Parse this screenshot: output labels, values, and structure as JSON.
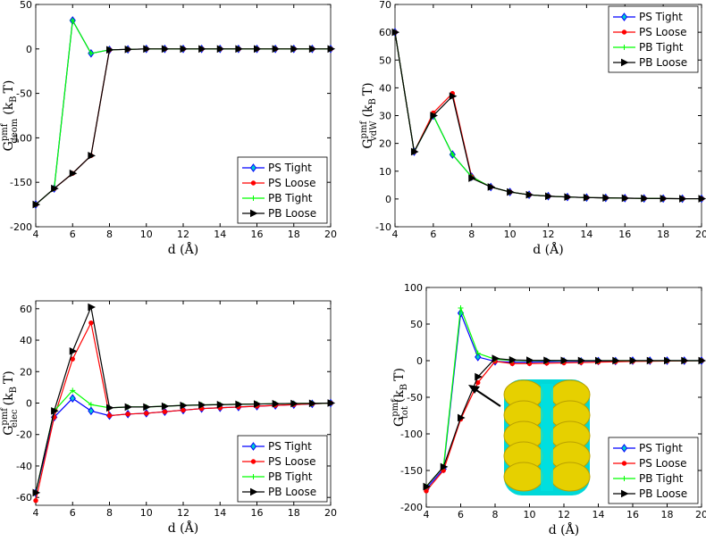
{
  "chart_data": [
    {
      "type": "line",
      "legend": "lower right",
      "xlabel": "d (Å)",
      "ylabel": {
        "main": "G",
        "sup": "pmf",
        "sub": "geom",
        "unit": "(k",
        "unit_sub": "B",
        "unit_end": "T)"
      },
      "x": [
        4,
        5,
        6,
        7,
        8,
        9,
        10,
        11,
        12,
        13,
        14,
        15,
        16,
        17,
        18,
        19,
        20
      ],
      "xlim": [
        4,
        20
      ],
      "xticks": [
        4,
        6,
        8,
        10,
        12,
        14,
        16,
        18,
        20
      ],
      "ylim": [
        -200,
        50
      ],
      "yticks": [
        -200,
        -150,
        -100,
        -50,
        0,
        50
      ],
      "series": [
        {
          "name": "PS Tight",
          "color": "#0000ff",
          "marker": "diamond",
          "values": [
            -175,
            -157,
            32,
            -5,
            -1,
            -0.5,
            0,
            0,
            0,
            0,
            0,
            0,
            0,
            0,
            0,
            0,
            0
          ]
        },
        {
          "name": "PS Loose",
          "color": "#ff0000",
          "marker": "dot",
          "values": [
            -175,
            -157,
            -140,
            -120,
            -1,
            -0.5,
            0,
            0,
            0,
            0,
            0,
            0,
            0,
            0,
            0,
            0,
            0
          ]
        },
        {
          "name": "PB Tight",
          "color": "#00ff00",
          "marker": "plus",
          "values": [
            -175,
            -157,
            32,
            -5,
            -1,
            -0.5,
            0,
            0,
            0,
            0,
            0,
            0,
            0,
            0,
            0,
            0,
            0
          ]
        },
        {
          "name": "PB Loose",
          "color": "#000000",
          "marker": "triangle",
          "values": [
            -175,
            -157,
            -140,
            -120,
            -1,
            -0.5,
            0,
            0,
            0,
            0,
            0,
            0,
            0,
            0,
            0,
            0,
            0
          ]
        }
      ]
    },
    {
      "type": "line",
      "legend": "upper right",
      "xlabel": "d (Å)",
      "ylabel": {
        "main": "G",
        "sup": "pmf",
        "sub": "vdW",
        "unit": "(k",
        "unit_sub": "B",
        "unit_end": "T)"
      },
      "x": [
        4,
        5,
        6,
        7,
        8,
        9,
        10,
        11,
        12,
        13,
        14,
        15,
        16,
        17,
        18,
        19,
        20
      ],
      "xlim": [
        4,
        20
      ],
      "xticks": [
        4,
        6,
        8,
        10,
        12,
        14,
        16,
        18,
        20
      ],
      "ylim": [
        -10,
        70
      ],
      "yticks": [
        -10,
        0,
        10,
        20,
        30,
        40,
        50,
        60,
        70
      ],
      "series": [
        {
          "name": "PS Tight",
          "color": "#0000ff",
          "marker": "diamond",
          "values": [
            60,
            17,
            30,
            16,
            8,
            4.3,
            2.5,
            1.5,
            1,
            0.7,
            0.5,
            0.4,
            0.3,
            0.2,
            0.15,
            0.1,
            0.1
          ]
        },
        {
          "name": "PS Loose",
          "color": "#ff0000",
          "marker": "dot",
          "values": [
            60,
            17,
            31,
            38,
            8,
            4.3,
            2.5,
            1.5,
            1,
            0.7,
            0.5,
            0.4,
            0.3,
            0.2,
            0.15,
            0.1,
            0.1
          ]
        },
        {
          "name": "PB Tight",
          "color": "#00ff00",
          "marker": "plus",
          "values": [
            60,
            17,
            30,
            16,
            8,
            4.3,
            2.5,
            1.5,
            1,
            0.7,
            0.5,
            0.4,
            0.3,
            0.2,
            0.15,
            0.1,
            0.1
          ]
        },
        {
          "name": "PB Loose",
          "color": "#000000",
          "marker": "triangle",
          "values": [
            60,
            17,
            30,
            37,
            7.5,
            4.3,
            2.5,
            1.5,
            1,
            0.7,
            0.5,
            0.4,
            0.3,
            0.2,
            0.15,
            0.1,
            0.1
          ]
        }
      ]
    },
    {
      "type": "line",
      "legend": "lower right",
      "xlabel": "d (Å)",
      "ylabel": {
        "main": "G",
        "sup": "pmf",
        "sub": "elec",
        "unit": "(k",
        "unit_sub": "B",
        "unit_end": "T)"
      },
      "x": [
        4,
        5,
        6,
        7,
        8,
        9,
        10,
        11,
        12,
        13,
        14,
        15,
        16,
        17,
        18,
        19,
        20
      ],
      "xlim": [
        4,
        20
      ],
      "xticks": [
        4,
        6,
        8,
        10,
        12,
        14,
        16,
        18,
        20
      ],
      "ylim": [
        -65,
        65
      ],
      "yticks": [
        -60,
        -40,
        -20,
        0,
        20,
        40,
        60
      ],
      "series": [
        {
          "name": "PS Tight",
          "color": "#0000ff",
          "marker": "diamond",
          "values": [
            -57,
            -9,
            3,
            -5,
            -8,
            -7,
            -6.5,
            -5.5,
            -4.5,
            -3.5,
            -3,
            -2.5,
            -2,
            -1.5,
            -1,
            -0.5,
            0
          ]
        },
        {
          "name": "PS Loose",
          "color": "#ff0000",
          "marker": "dot",
          "values": [
            -62,
            -9,
            28,
            51,
            -8,
            -7,
            -6.5,
            -5.5,
            -4.5,
            -3.5,
            -3,
            -2.5,
            -2,
            -1.5,
            -1,
            -0.5,
            0
          ]
        },
        {
          "name": "PB Tight",
          "color": "#00ff00",
          "marker": "plus",
          "values": [
            -57,
            -5,
            8,
            -1,
            -3,
            -2.5,
            -2.5,
            -2,
            -1.5,
            -1.2,
            -1,
            -0.8,
            -0.6,
            -0.4,
            -0.3,
            -0.2,
            0
          ]
        },
        {
          "name": "PB Loose",
          "color": "#000000",
          "marker": "triangle",
          "values": [
            -57,
            -5,
            33,
            61,
            -3,
            -2.5,
            -2.5,
            -2,
            -1.5,
            -1.2,
            -1,
            -0.8,
            -0.6,
            -0.4,
            -0.3,
            -0.2,
            0
          ]
        }
      ]
    },
    {
      "type": "line",
      "legend": "lower right",
      "xlabel": "d (Å)",
      "ylabel": {
        "main": "G",
        "sup": "pmf",
        "sub": "tot",
        "unit": "(k",
        "unit_sub": "B",
        "unit_end": "T)"
      },
      "x": [
        4,
        5,
        6,
        7,
        8,
        9,
        10,
        11,
        12,
        13,
        14,
        15,
        16,
        17,
        18,
        19,
        20
      ],
      "xlim": [
        4,
        20
      ],
      "xticks": [
        4,
        6,
        8,
        10,
        12,
        14,
        16,
        18,
        20
      ],
      "ylim": [
        -200,
        100
      ],
      "yticks": [
        -200,
        -150,
        -100,
        -50,
        0,
        50,
        100
      ],
      "series": [
        {
          "name": "PS Tight",
          "color": "#0000ff",
          "marker": "diamond",
          "values": [
            -175,
            -148,
            65,
            5,
            -1,
            -2,
            -2,
            -1.5,
            -1,
            -1,
            -0.5,
            -0.5,
            0,
            0,
            0,
            0,
            0
          ]
        },
        {
          "name": "PS Loose",
          "color": "#ff0000",
          "marker": "dot",
          "values": [
            -178,
            -150,
            -80,
            -30,
            -1,
            -4,
            -4,
            -3.5,
            -3,
            -2.5,
            -2,
            -1.5,
            -1,
            -0.8,
            -0.5,
            -0.3,
            0
          ]
        },
        {
          "name": "PB Tight",
          "color": "#00ff00",
          "marker": "plus",
          "values": [
            -172,
            -145,
            72,
            10,
            2,
            0.5,
            0,
            0,
            0,
            0,
            0,
            0,
            0,
            0,
            0,
            0,
            0
          ]
        },
        {
          "name": "PB Loose",
          "color": "#000000",
          "marker": "triangle",
          "values": [
            -172,
            -145,
            -78,
            -22,
            3,
            1,
            0.5,
            0.3,
            0.2,
            0.1,
            0,
            0,
            0,
            0,
            0,
            0,
            0
          ]
        }
      ]
    }
  ]
}
